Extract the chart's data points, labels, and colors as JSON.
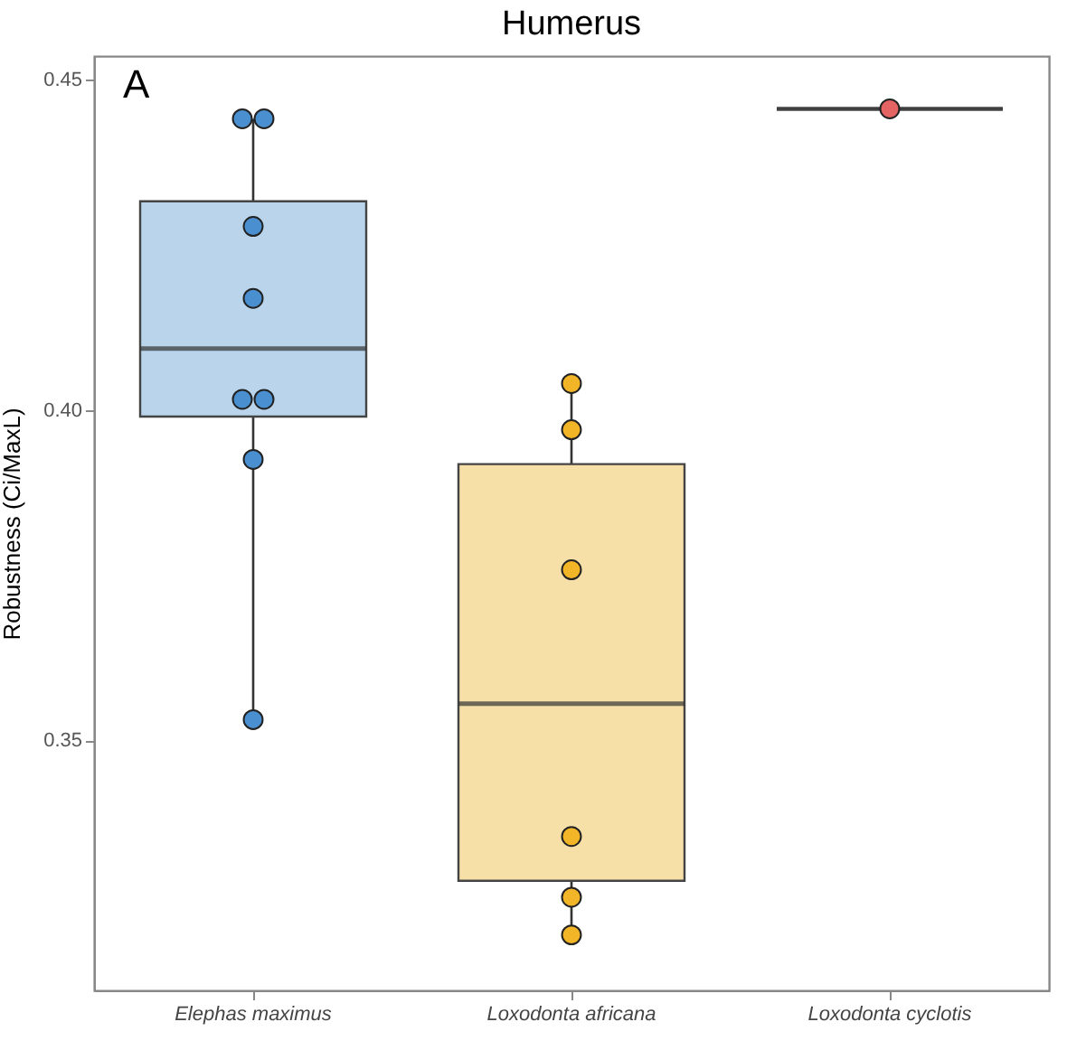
{
  "chart_data": {
    "type": "box",
    "title": "Humerus",
    "ylabel": "Robustness (Ci/MaxL)",
    "annotations": [
      "A"
    ],
    "categories": [
      "Elephas maximus",
      "Loxodonta africana",
      "Loxodonta cyclotis"
    ],
    "colors": [
      "#b9d4eb",
      "#f6e0a7",
      null
    ],
    "boxes": [
      {
        "low": 0.3531,
        "q1": 0.399,
        "median": 0.4093,
        "q3": 0.4316,
        "high": 0.4441
      },
      {
        "low": 0.3205,
        "q1": 0.3287,
        "median": 0.3555,
        "q3": 0.3918,
        "high": 0.404
      },
      {
        "low": 0.4456,
        "q1": 0.4456,
        "median": 0.4456,
        "q3": 0.4456,
        "high": 0.4456
      }
    ],
    "series": [
      {
        "type": "scatter",
        "color": "#4a8fcf",
        "x": [
          "Elephas maximus",
          "Elephas maximus",
          "Elephas maximus",
          "Elephas maximus",
          "Elephas maximus",
          "Elephas maximus",
          "Elephas maximus",
          "Elephas maximus"
        ],
        "values": [
          0.4441,
          0.4441,
          0.4278,
          0.4169,
          0.4016,
          0.4016,
          0.3925,
          0.3531
        ]
      },
      {
        "type": "scatter",
        "color": "#f2b528",
        "x": [
          "Loxodonta africana",
          "Loxodonta africana",
          "Loxodonta africana",
          "Loxodonta africana",
          "Loxodonta africana",
          "Loxodonta africana"
        ],
        "values": [
          0.404,
          0.397,
          0.3758,
          0.3354,
          0.3262,
          0.3205
        ]
      },
      {
        "type": "scatter",
        "color": "#e46464",
        "x": [
          "Loxodonta cyclotis"
        ],
        "values": [
          0.4456
        ]
      }
    ],
    "ylim": [
      0.3121,
      0.4536
    ],
    "yticks": [
      0.35,
      {
        "value": 0.4,
        "label": "0.40"
      },
      0.45
    ],
    "marker": "circle"
  }
}
